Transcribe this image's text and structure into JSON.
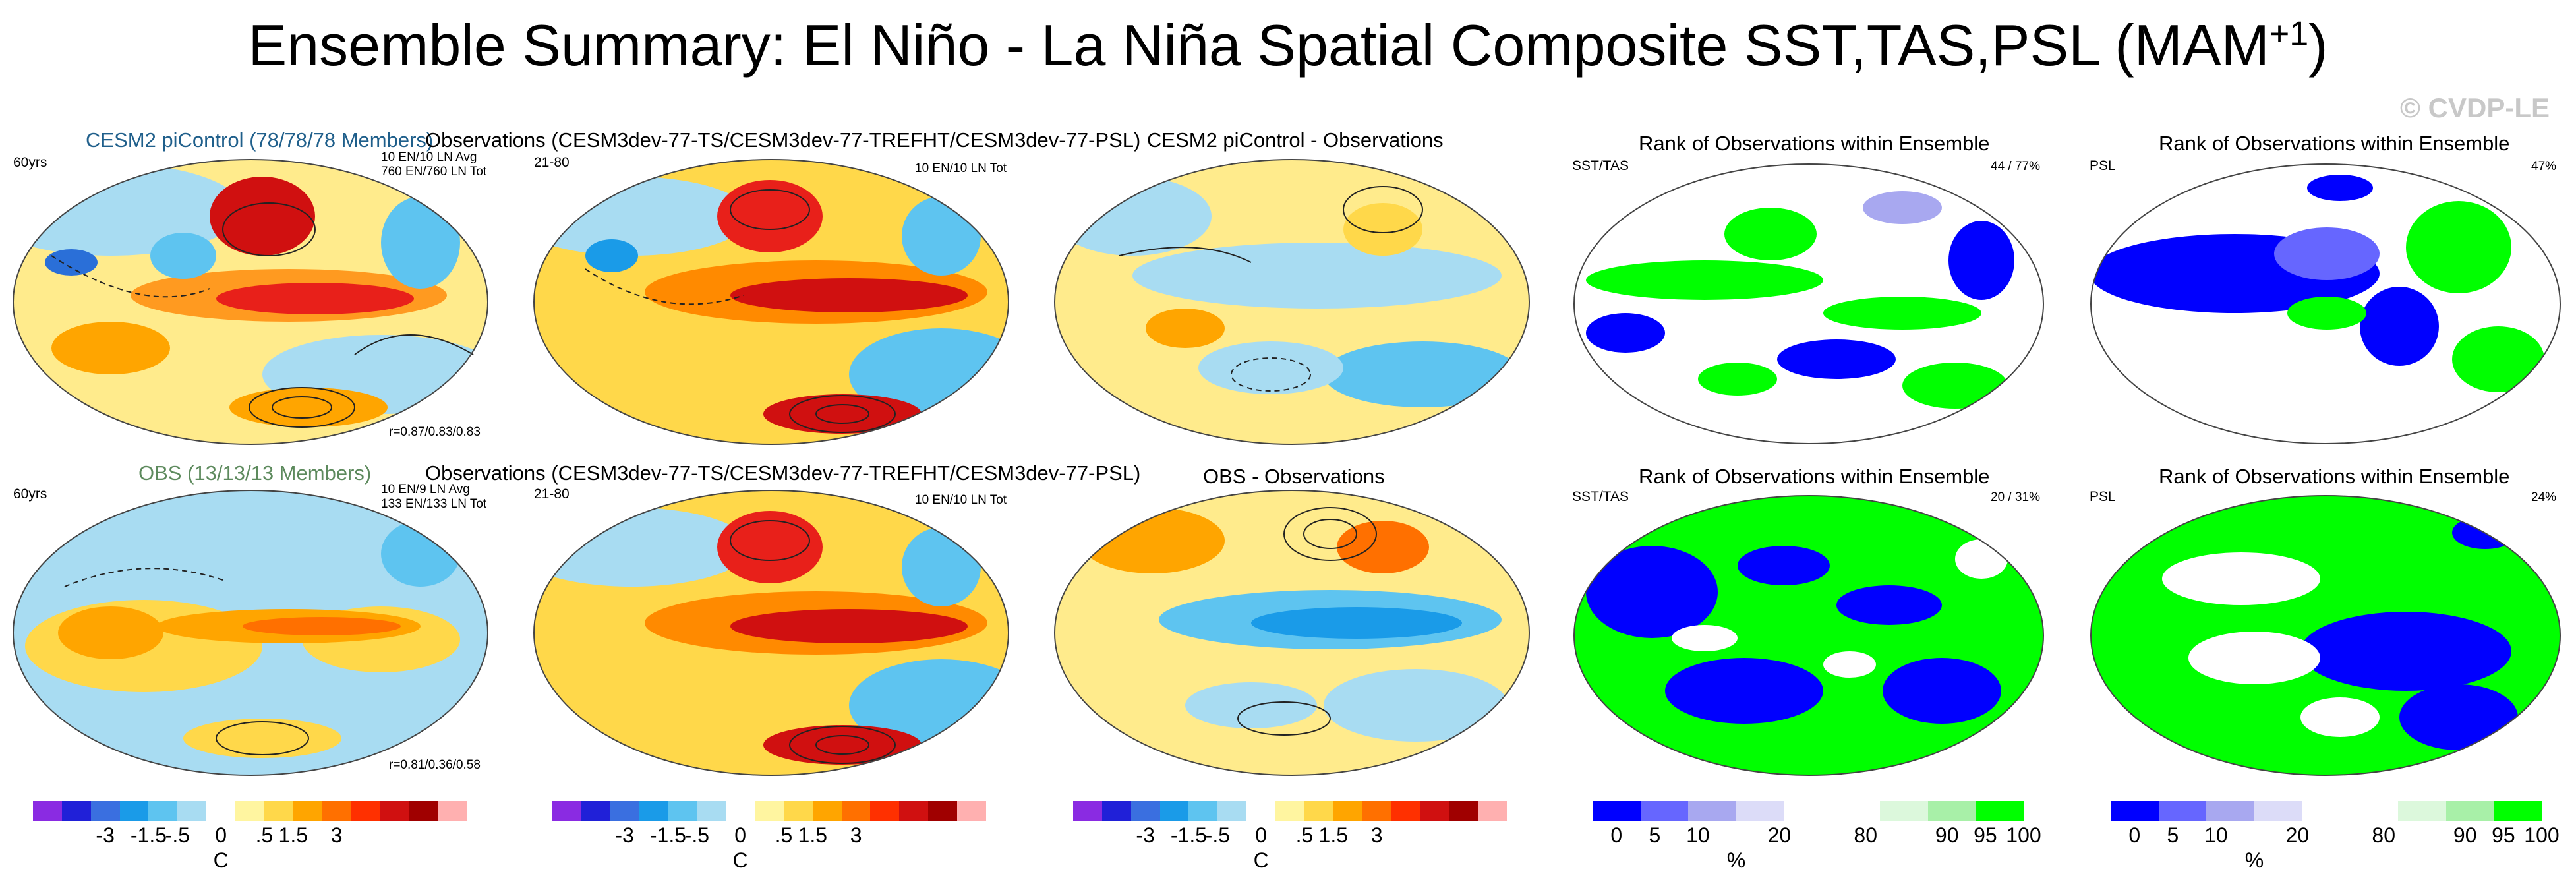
{
  "title": "Ensemble Summary: El Niño - La Niña Spatial Composite SST,TAS,PSL (MAM",
  "title_sup": "+1",
  "title_close": ")",
  "watermark": "© CVDP-LE",
  "rows": [
    {
      "p1": {
        "title": "CESM2 piControl (78/78/78 Members)",
        "title_color": "#1f5f8b",
        "left_label": "60yrs",
        "right_line1": "10 EN/10 LN Avg",
        "right_line2": "760 EN/760 LN Tot",
        "corr": "r=0.87/0.83/0.83"
      },
      "p2": {
        "title": "Observations (CESM3dev-77-TS/CESM3dev-77-TREFHT/CESM3dev-77-PSL)",
        "left_label": "21-80",
        "right_label": "10 EN/10 LN Tot"
      },
      "p3": {
        "title": "CESM2 piControl - Observations"
      },
      "p4": {
        "title": "Rank of Observations within Ensemble",
        "left_label": "SST/TAS",
        "right_label": "44 /  77%"
      },
      "p5": {
        "title": "Rank of Observations within Ensemble",
        "left_label": "PSL",
        "right_label": "47%"
      }
    },
    {
      "p1": {
        "title": "OBS (13/13/13 Members)",
        "title_color": "#5d8a5d",
        "left_label": "60yrs",
        "right_line1": "10 EN/9 LN Avg",
        "right_line2": "133 EN/133 LN Tot",
        "corr": "r=0.81/0.36/0.58"
      },
      "p2": {
        "title": "Observations (CESM3dev-77-TS/CESM3dev-77-TREFHT/CESM3dev-77-PSL)",
        "left_label": "21-80",
        "right_label": "10 EN/10 LN Tot"
      },
      "p3": {
        "title": "OBS - Observations"
      },
      "p4": {
        "title": "Rank of Observations within Ensemble",
        "left_label": "SST/TAS",
        "right_label": "20 /  31%"
      },
      "p5": {
        "title": "Rank of Observations within Ensemble",
        "left_label": "PSL",
        "right_label": "24%"
      }
    }
  ],
  "colorbars": {
    "temp": {
      "colors": [
        "#8a2be2",
        "#2020d8",
        "#3a6fe0",
        "#1a9be8",
        "#5ec4f0",
        "#a8dcf2",
        "#ffffff",
        "#fff5a0",
        "#ffd84a",
        "#ffa500",
        "#ff7000",
        "#ff3000",
        "#d01010",
        "#a00000",
        "#ffb0b0"
      ],
      "ticks": [
        "-3",
        "-1.5",
        "-.5",
        "0",
        ".5",
        "1.5",
        "3"
      ],
      "unit": "C"
    },
    "rank": {
      "colors": [
        "#0000ff",
        "#6666ff",
        "#a8a8f0",
        "#dcdcf8",
        "#ffffff",
        "#ffffff",
        "#dcf8dc",
        "#a8f0a8",
        "#00ff00"
      ],
      "ticks": [
        "0",
        "5",
        "10",
        "20",
        "80",
        "90",
        "95",
        "100"
      ],
      "unit": "%"
    }
  }
}
